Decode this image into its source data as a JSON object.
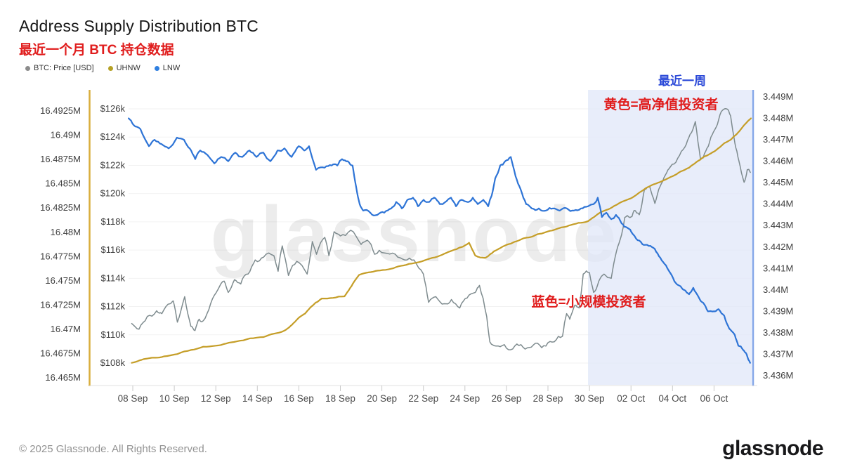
{
  "header": {
    "title": "Address Supply Distribution BTC",
    "subtitle": "最近一个月 BTC 持仓数据"
  },
  "legend": {
    "items": [
      {
        "label": "BTC: Price [USD]",
        "color": "#8c8c8c"
      },
      {
        "label": "UHNW",
        "color": "#b5a126"
      },
      {
        "label": "LNW",
        "color": "#2f7fe0"
      }
    ]
  },
  "annotations": {
    "recent_week": "最近一周",
    "yellow_note": "黄色=高净值投资者",
    "blue_note": "蓝色=小规模投资者"
  },
  "watermark": "glassnode",
  "footer": {
    "copyright": "© 2025 Glassnode. All Rights Reserved.",
    "wordmark": "glassnode"
  },
  "chart_data": {
    "type": "line",
    "title": "Address Supply Distribution BTC",
    "x_unit": "days since 08 Sep",
    "x_ticks": [
      "08 Sep",
      "10 Sep",
      "12 Sep",
      "14 Sep",
      "16 Sep",
      "18 Sep",
      "20 Sep",
      "22 Sep",
      "24 Sep",
      "26 Sep",
      "28 Sep",
      "30 Sep",
      "02 Oct",
      "04 Oct",
      "06 Oct"
    ],
    "grid": "horizontal-faint",
    "legend_position": "top-left",
    "highlight_region": {
      "label": "最近一周",
      "start_day": 21.93,
      "end_day": 29.85,
      "color": "#dfe6f8"
    },
    "axes": {
      "supply_left": {
        "labels": [
          "16.4925M",
          "16.49M",
          "16.4875M",
          "16.485M",
          "16.4825M",
          "16.48M",
          "16.4775M",
          "16.475M",
          "16.4725M",
          "16.47M",
          "16.4675M",
          "16.465M"
        ],
        "min": 16.465,
        "max": 16.4925
      },
      "price": {
        "labels": [
          "$126k",
          "$124k",
          "$122k",
          "$120k",
          "$118k",
          "$116k",
          "$114k",
          "$112k",
          "$110k",
          "$108k"
        ],
        "min": 108,
        "max": 126,
        "axis_color": "#d9ad3c"
      },
      "right": {
        "labels": [
          "3.449M",
          "3.448M",
          "3.447M",
          "3.446M",
          "3.445M",
          "3.444M",
          "3.443M",
          "3.442M",
          "3.441M",
          "3.44M",
          "3.439M",
          "3.438M",
          "3.437M",
          "3.436M"
        ],
        "min": 3.436,
        "max": 3.449,
        "axis_color": "#84a7e8"
      }
    },
    "series": [
      {
        "name": "BTC: Price [USD]",
        "axis": "price",
        "color": "#7e8b8e",
        "width": 1.5,
        "noise": 1.4,
        "rounds": 2,
        "points": [
          [
            -0.05,
            110.8
          ],
          [
            0.3,
            110.4
          ],
          [
            0.7,
            111.3
          ],
          [
            1.15,
            111.7
          ],
          [
            1.4,
            111.5
          ],
          [
            1.8,
            112.2
          ],
          [
            1.95,
            112.4
          ],
          [
            2.15,
            110.9
          ],
          [
            2.5,
            112.7
          ],
          [
            2.8,
            110.6
          ],
          [
            3.0,
            110.3
          ],
          [
            3.2,
            111.1
          ],
          [
            3.4,
            111.0
          ],
          [
            3.75,
            112.2
          ],
          [
            4.1,
            113.2
          ],
          [
            4.4,
            113.8
          ],
          [
            4.6,
            113.0
          ],
          [
            4.9,
            113.9
          ],
          [
            5.2,
            113.6
          ],
          [
            5.55,
            114.3
          ],
          [
            5.9,
            115.3
          ],
          [
            6.3,
            115.5
          ],
          [
            6.8,
            115.6
          ],
          [
            7.0,
            114.5
          ],
          [
            7.2,
            116.3
          ],
          [
            7.5,
            114.2
          ],
          [
            7.9,
            115.2
          ],
          [
            8.4,
            114.3
          ],
          [
            8.65,
            116.6
          ],
          [
            8.85,
            115.7
          ],
          [
            9.25,
            116.9
          ],
          [
            9.45,
            115.6
          ],
          [
            9.7,
            117.3
          ],
          [
            10.0,
            117.0
          ],
          [
            10.5,
            117.4
          ],
          [
            11.0,
            116.4
          ],
          [
            11.3,
            116.7
          ],
          [
            11.65,
            115.7
          ],
          [
            12.1,
            115.8
          ],
          [
            12.65,
            115.7
          ],
          [
            13.1,
            115.3
          ],
          [
            13.55,
            115.3
          ],
          [
            14.0,
            114.3
          ],
          [
            14.25,
            112.3
          ],
          [
            14.6,
            112.7
          ],
          [
            15.0,
            112.2
          ],
          [
            15.35,
            112.5
          ],
          [
            15.75,
            111.9
          ],
          [
            16.1,
            112.6
          ],
          [
            16.5,
            113.0
          ],
          [
            16.7,
            113.5
          ],
          [
            17.05,
            111.3
          ],
          [
            17.2,
            109.5
          ],
          [
            17.5,
            109.2
          ],
          [
            17.9,
            109.3
          ],
          [
            18.3,
            109.0
          ],
          [
            18.7,
            109.3
          ],
          [
            19.1,
            109.1
          ],
          [
            19.5,
            109.4
          ],
          [
            19.9,
            109.2
          ],
          [
            20.3,
            109.5
          ],
          [
            20.7,
            109.9
          ],
          [
            20.9,
            111.5
          ],
          [
            21.05,
            111.1
          ],
          [
            21.3,
            112.1
          ],
          [
            21.5,
            111.9
          ],
          [
            21.7,
            114.3
          ],
          [
            22.0,
            114.4
          ],
          [
            22.2,
            113.0
          ],
          [
            22.45,
            113.8
          ],
          [
            22.7,
            114.3
          ],
          [
            23.05,
            114.0
          ],
          [
            23.3,
            115.9
          ],
          [
            23.55,
            117.1
          ],
          [
            23.7,
            118.3
          ],
          [
            23.95,
            118.3
          ],
          [
            24.15,
            118.8
          ],
          [
            24.4,
            118.5
          ],
          [
            24.65,
            120.3
          ],
          [
            24.9,
            120.5
          ],
          [
            25.15,
            119.3
          ],
          [
            25.4,
            120.5
          ],
          [
            25.65,
            121.3
          ],
          [
            25.9,
            121.9
          ],
          [
            26.25,
            122.5
          ],
          [
            26.6,
            123.3
          ],
          [
            26.85,
            124.2
          ],
          [
            27.1,
            125.1
          ],
          [
            27.35,
            122.4
          ],
          [
            27.6,
            123.0
          ],
          [
            27.85,
            124.0
          ],
          [
            28.1,
            124.7
          ],
          [
            28.35,
            125.8
          ],
          [
            28.6,
            126.0
          ],
          [
            28.8,
            125.5
          ],
          [
            29.0,
            123.6
          ],
          [
            29.2,
            122.3
          ],
          [
            29.45,
            120.8
          ],
          [
            29.6,
            121.7
          ],
          [
            29.75,
            121.5
          ]
        ]
      },
      {
        "name": "UHNW",
        "axis": "right",
        "color": "#c59e28",
        "width": 2.2,
        "noise": 0.35,
        "rounds": 3,
        "points": [
          [
            -0.05,
            3.4366
          ],
          [
            0.7,
            3.4368
          ],
          [
            1.5,
            3.4369
          ],
          [
            2.8,
            3.4372
          ],
          [
            4.0,
            3.4374
          ],
          [
            5.0,
            3.4376
          ],
          [
            6.3,
            3.4378
          ],
          [
            7.3,
            3.4381
          ],
          [
            7.8,
            3.4385
          ],
          [
            8.3,
            3.4389
          ],
          [
            8.8,
            3.4394
          ],
          [
            9.1,
            3.4396
          ],
          [
            10.2,
            3.4397
          ],
          [
            10.55,
            3.4402
          ],
          [
            10.9,
            3.4407
          ],
          [
            11.8,
            3.4409
          ],
          [
            12.8,
            3.4411
          ],
          [
            13.8,
            3.4413
          ],
          [
            14.8,
            3.4416
          ],
          [
            15.6,
            3.4419
          ],
          [
            16.2,
            3.4422
          ],
          [
            16.5,
            3.4416
          ],
          [
            17.0,
            3.4415
          ],
          [
            17.4,
            3.4418
          ],
          [
            18.0,
            3.4421
          ],
          [
            18.8,
            3.4424
          ],
          [
            19.5,
            3.4426
          ],
          [
            20.3,
            3.4428
          ],
          [
            21.0,
            3.443
          ],
          [
            21.93,
            3.4432
          ],
          [
            22.5,
            3.4436
          ],
          [
            23.0,
            3.4438
          ],
          [
            23.8,
            3.4442
          ],
          [
            24.5,
            3.4446
          ],
          [
            25.3,
            3.445
          ],
          [
            26.0,
            3.4453
          ],
          [
            26.8,
            3.4457
          ],
          [
            27.5,
            3.4462
          ],
          [
            28.2,
            3.4466
          ],
          [
            28.8,
            3.447
          ],
          [
            29.3,
            3.4475
          ],
          [
            29.78,
            3.448
          ]
        ]
      },
      {
        "name": "LNW",
        "axis": "right",
        "color": "#2e74d6",
        "width": 2.2,
        "noise": 0.8,
        "rounds": 2,
        "points": [
          [
            -0.2,
            3.448
          ],
          [
            0.03,
            3.4477
          ],
          [
            0.37,
            3.4475
          ],
          [
            0.78,
            3.4467
          ],
          [
            1.05,
            3.447
          ],
          [
            1.39,
            3.4468
          ],
          [
            1.73,
            3.4466
          ],
          [
            2.13,
            3.4471
          ],
          [
            2.47,
            3.447
          ],
          [
            2.74,
            3.4466
          ],
          [
            3.01,
            3.4461
          ],
          [
            3.25,
            3.4465
          ],
          [
            3.59,
            3.4463
          ],
          [
            3.93,
            3.4459
          ],
          [
            4.26,
            3.4462
          ],
          [
            4.6,
            3.446
          ],
          [
            4.94,
            3.4464
          ],
          [
            5.28,
            3.4462
          ],
          [
            5.62,
            3.4465
          ],
          [
            5.96,
            3.4462
          ],
          [
            6.29,
            3.4464
          ],
          [
            6.63,
            3.446
          ],
          [
            6.97,
            3.4465
          ],
          [
            7.31,
            3.4466
          ],
          [
            7.65,
            3.4462
          ],
          [
            7.99,
            3.4467
          ],
          [
            8.26,
            3.4465
          ],
          [
            8.49,
            3.4467
          ],
          [
            8.83,
            3.4456
          ],
          [
            9.24,
            3.4457
          ],
          [
            9.58,
            3.4458
          ],
          [
            9.85,
            3.4458
          ],
          [
            10.08,
            3.4461
          ],
          [
            10.36,
            3.446
          ],
          [
            10.59,
            3.4458
          ],
          [
            10.76,
            3.4448
          ],
          [
            10.93,
            3.444
          ],
          [
            11.1,
            3.4437
          ],
          [
            11.44,
            3.4436
          ],
          [
            11.78,
            3.4435
          ],
          [
            12.11,
            3.4436
          ],
          [
            12.45,
            3.4438
          ],
          [
            12.69,
            3.4441
          ],
          [
            12.96,
            3.4438
          ],
          [
            13.23,
            3.4442
          ],
          [
            13.5,
            3.4443
          ],
          [
            13.74,
            3.4439
          ],
          [
            14.01,
            3.4442
          ],
          [
            14.28,
            3.4441
          ],
          [
            14.52,
            3.4443
          ],
          [
            14.79,
            3.444
          ],
          [
            15.06,
            3.4441
          ],
          [
            15.33,
            3.4443
          ],
          [
            15.57,
            3.4439
          ],
          [
            15.84,
            3.4442
          ],
          [
            16.11,
            3.4441
          ],
          [
            16.38,
            3.4443
          ],
          [
            16.62,
            3.444
          ],
          [
            16.89,
            3.4442
          ],
          [
            17.12,
            3.4439
          ],
          [
            17.29,
            3.4444
          ],
          [
            17.46,
            3.4452
          ],
          [
            17.7,
            3.4458
          ],
          [
            17.94,
            3.446
          ],
          [
            18.21,
            3.4462
          ],
          [
            18.44,
            3.4453
          ],
          [
            18.68,
            3.4447
          ],
          [
            18.95,
            3.444
          ],
          [
            19.22,
            3.4438
          ],
          [
            19.56,
            3.4438
          ],
          [
            19.9,
            3.4437
          ],
          [
            20.24,
            3.4438
          ],
          [
            20.57,
            3.4437
          ],
          [
            20.91,
            3.4438
          ],
          [
            21.25,
            3.4437
          ],
          [
            21.59,
            3.4438
          ],
          [
            21.93,
            3.4439
          ],
          [
            22.2,
            3.444
          ],
          [
            22.4,
            3.4443
          ],
          [
            22.6,
            3.4434
          ],
          [
            22.81,
            3.4436
          ],
          [
            23.05,
            3.4433
          ],
          [
            23.28,
            3.4435
          ],
          [
            23.55,
            3.4431
          ],
          [
            23.82,
            3.4429
          ],
          [
            24.09,
            3.4426
          ],
          [
            24.4,
            3.4423
          ],
          [
            24.7,
            3.4421
          ],
          [
            25.01,
            3.442
          ],
          [
            25.28,
            3.4417
          ],
          [
            25.55,
            3.4413
          ],
          [
            25.82,
            3.4409
          ],
          [
            26.09,
            3.4404
          ],
          [
            26.33,
            3.4402
          ],
          [
            26.56,
            3.44
          ],
          [
            26.8,
            3.4398
          ],
          [
            27.0,
            3.4401
          ],
          [
            27.24,
            3.4397
          ],
          [
            27.48,
            3.4394
          ],
          [
            27.71,
            3.439
          ],
          [
            27.98,
            3.439
          ],
          [
            28.22,
            3.4391
          ],
          [
            28.49,
            3.4388
          ],
          [
            28.73,
            3.4382
          ],
          [
            29.0,
            3.4379
          ],
          [
            29.17,
            3.4374
          ],
          [
            29.4,
            3.4372
          ],
          [
            29.57,
            3.437
          ],
          [
            29.74,
            3.4366
          ]
        ]
      }
    ]
  }
}
